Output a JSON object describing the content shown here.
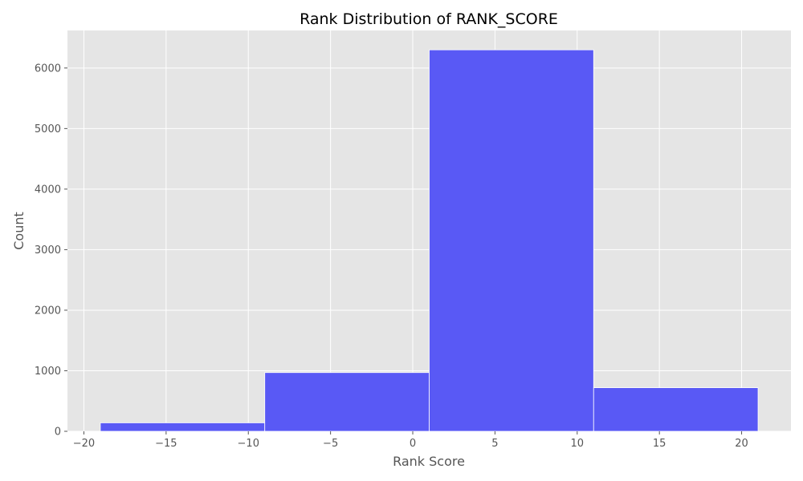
{
  "chart_data": {
    "type": "bar",
    "title": "Rank Distribution of RANK_SCORE",
    "xlabel": "Rank Score",
    "ylabel": "Count",
    "xlim": [
      -21,
      23
    ],
    "ylim": [
      0,
      6620
    ],
    "x_ticks": [
      -20,
      -15,
      -10,
      -5,
      0,
      5,
      10,
      15,
      20
    ],
    "x_tick_labels": [
      "−20",
      "−15",
      "−10",
      "−5",
      "0",
      "5",
      "10",
      "15",
      "20"
    ],
    "y_ticks": [
      0,
      1000,
      2000,
      3000,
      4000,
      5000,
      6000
    ],
    "y_tick_labels": [
      "0",
      "1000",
      "2000",
      "3000",
      "4000",
      "5000",
      "6000"
    ],
    "grid": true,
    "bins": [
      {
        "x0": -19,
        "x1": -9,
        "count": 140
      },
      {
        "x0": -9,
        "x1": 1,
        "count": 970
      },
      {
        "x0": 1,
        "x1": 11,
        "count": 6300
      },
      {
        "x0": 11,
        "x1": 21,
        "count": 720
      }
    ],
    "colors": {
      "bar": "#5959f5",
      "background": "#e5e5e5",
      "grid": "#ffffff",
      "tick": "#555555"
    }
  }
}
